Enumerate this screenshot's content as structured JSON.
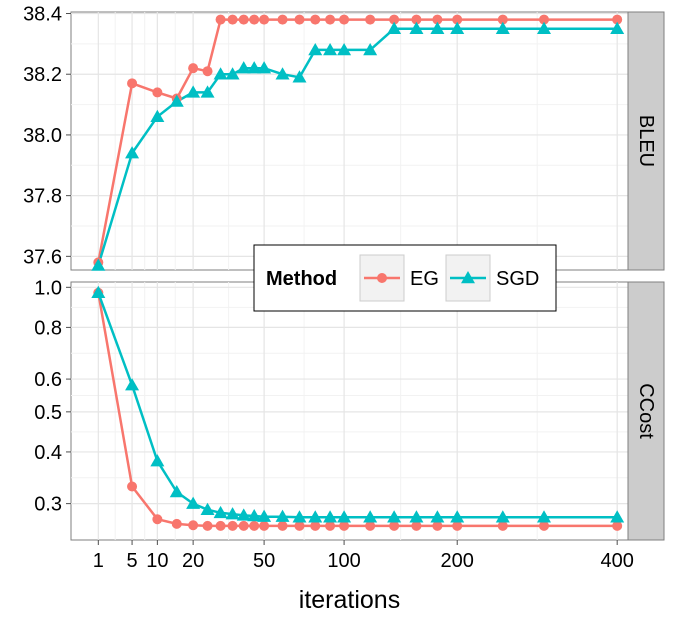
{
  "chart_data": {
    "type": "line",
    "xlabel": "iterations",
    "x_ticks": [
      1,
      5,
      10,
      20,
      50,
      100,
      200,
      400
    ],
    "x_scale": "sqrt",
    "xlim": [
      0,
      416
    ],
    "legend": {
      "title": "Method",
      "position": "center",
      "entries": [
        {
          "name": "EG",
          "color": "#F8766D",
          "marker": "circle"
        },
        {
          "name": "SGD",
          "color": "#00BFC4",
          "marker": "triangle"
        }
      ]
    },
    "grid": true,
    "panels": [
      {
        "strip_label": "BLEU",
        "y_scale": "linear",
        "ylim": [
          37.555,
          38.405
        ],
        "y_ticks": [
          37.6,
          37.8,
          38.0,
          38.2,
          38.4
        ],
        "y_tick_labels": [
          "37.6",
          "37.8",
          "38.0",
          "38.2",
          "38.4"
        ],
        "series": [
          {
            "name": "EG",
            "x": [
              1,
              5,
              10,
              15,
              20,
              25,
              30,
              35,
              40,
              45,
              50,
              60,
              70,
              80,
              90,
              100,
              120,
              140,
              160,
              180,
              200,
              250,
              300,
              400
            ],
            "y": [
              37.58,
              38.17,
              38.14,
              38.12,
              38.22,
              38.21,
              38.38,
              38.38,
              38.38,
              38.38,
              38.38,
              38.38,
              38.38,
              38.38,
              38.38,
              38.38,
              38.38,
              38.38,
              38.38,
              38.38,
              38.38,
              38.38,
              38.38,
              38.38
            ]
          },
          {
            "name": "SGD",
            "x": [
              1,
              5,
              10,
              15,
              20,
              25,
              30,
              35,
              40,
              45,
              50,
              60,
              70,
              80,
              90,
              100,
              120,
              140,
              160,
              180,
              200,
              250,
              300,
              400
            ],
            "y": [
              37.57,
              37.94,
              38.06,
              38.11,
              38.14,
              38.14,
              38.2,
              38.2,
              38.22,
              38.22,
              38.22,
              38.2,
              38.19,
              38.28,
              38.28,
              38.28,
              38.28,
              38.35,
              38.35,
              38.35,
              38.35,
              38.35,
              38.35,
              38.35
            ]
          }
        ]
      },
      {
        "strip_label": "CCost",
        "y_scale": "log",
        "ylim": [
          0.245,
          1.03
        ],
        "y_ticks": [
          0.3,
          0.4,
          0.5,
          0.6,
          0.8,
          1.0
        ],
        "y_tick_labels": [
          "0.3",
          "0.4",
          "0.5",
          "0.6",
          "0.8",
          "1.0"
        ],
        "series": [
          {
            "name": "EG",
            "x": [
              1,
              5,
              10,
              15,
              20,
              25,
              30,
              35,
              40,
              45,
              50,
              60,
              70,
              80,
              90,
              100,
              120,
              140,
              160,
              180,
              200,
              250,
              300,
              400
            ],
            "y": [
              0.97,
              0.33,
              0.275,
              0.268,
              0.266,
              0.265,
              0.265,
              0.265,
              0.265,
              0.265,
              0.265,
              0.265,
              0.265,
              0.265,
              0.265,
              0.265,
              0.265,
              0.265,
              0.265,
              0.265,
              0.265,
              0.265,
              0.265,
              0.265
            ]
          },
          {
            "name": "SGD",
            "x": [
              1,
              5,
              10,
              15,
              20,
              25,
              30,
              35,
              40,
              45,
              50,
              60,
              70,
              80,
              90,
              100,
              120,
              140,
              160,
              180,
              200,
              250,
              300,
              400
            ],
            "y": [
              0.97,
              0.58,
              0.38,
              0.32,
              0.3,
              0.29,
              0.285,
              0.283,
              0.281,
              0.28,
              0.279,
              0.279,
              0.278,
              0.278,
              0.278,
              0.278,
              0.278,
              0.278,
              0.278,
              0.278,
              0.278,
              0.278,
              0.278,
              0.278
            ]
          }
        ]
      }
    ]
  }
}
